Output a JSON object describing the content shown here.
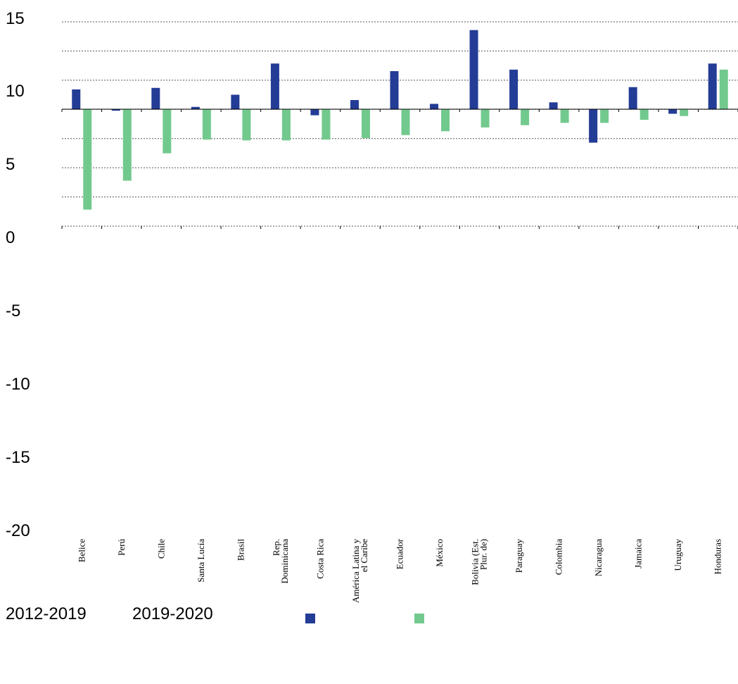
{
  "chart_data": {
    "type": "bar",
    "title": "",
    "xlabel": "",
    "ylabel": "",
    "categories": [
      "Belice",
      "Perú",
      "Chile",
      "Santa Lucía",
      "Brasil",
      "Rep. Dominicana",
      "Costa Rica",
      "América Latina y el Caribe",
      "Ecuador",
      "México",
      "Bolivia (Est. Plur. de)",
      "Paraguay",
      "Colombia",
      "Nicaragua",
      "Jamaica",
      "Uruguay",
      "Honduras"
    ],
    "category_lines": [
      [
        "Belice"
      ],
      [
        "Perú"
      ],
      [
        "Chile"
      ],
      [
        "Santa Lucía"
      ],
      [
        "Brasil"
      ],
      [
        "Rep.",
        "Dominicana"
      ],
      [
        "Costa Rica"
      ],
      [
        "América Latina y",
        "el Caribe"
      ],
      [
        "Ecuador"
      ],
      [
        "México"
      ],
      [
        "Bolivia (Est.",
        "Plur. de)"
      ],
      [
        "Paraguay"
      ],
      [
        "Colombia"
      ],
      [
        "Nicaragua"
      ],
      [
        "Jamaica"
      ],
      [
        "Uruguay"
      ],
      [
        "Honduras"
      ]
    ],
    "series": [
      {
        "name": "2012-2019",
        "color": "#233C96",
        "values": [
          1.3,
          -0.1,
          1.4,
          0.15,
          0.95,
          3.0,
          -0.4,
          0.6,
          2.5,
          0.35,
          5.2,
          2.6,
          0.45,
          -2.2,
          1.45,
          -0.3,
          3.0
        ]
      },
      {
        "name": "2019-2020",
        "color": "#72C98E",
        "values": [
          -6.6,
          -4.7,
          -2.9,
          -2.0,
          -2.05,
          -2.05,
          -2.0,
          -1.9,
          -1.7,
          -1.45,
          -1.2,
          -1.05,
          -0.9,
          -0.9,
          -0.7,
          -0.45,
          2.6
        ]
      }
    ],
    "ylim": [
      -20,
      15
    ],
    "yticks": [
      15,
      10,
      5,
      0,
      -5,
      -10,
      -15,
      -20
    ],
    "ytick_labels": [
      "15",
      "10",
      "5",
      "0",
      "-5",
      "-10",
      "-15",
      "-20"
    ],
    "grid": "dashed horizontal",
    "legend_position": "bottom-left"
  }
}
